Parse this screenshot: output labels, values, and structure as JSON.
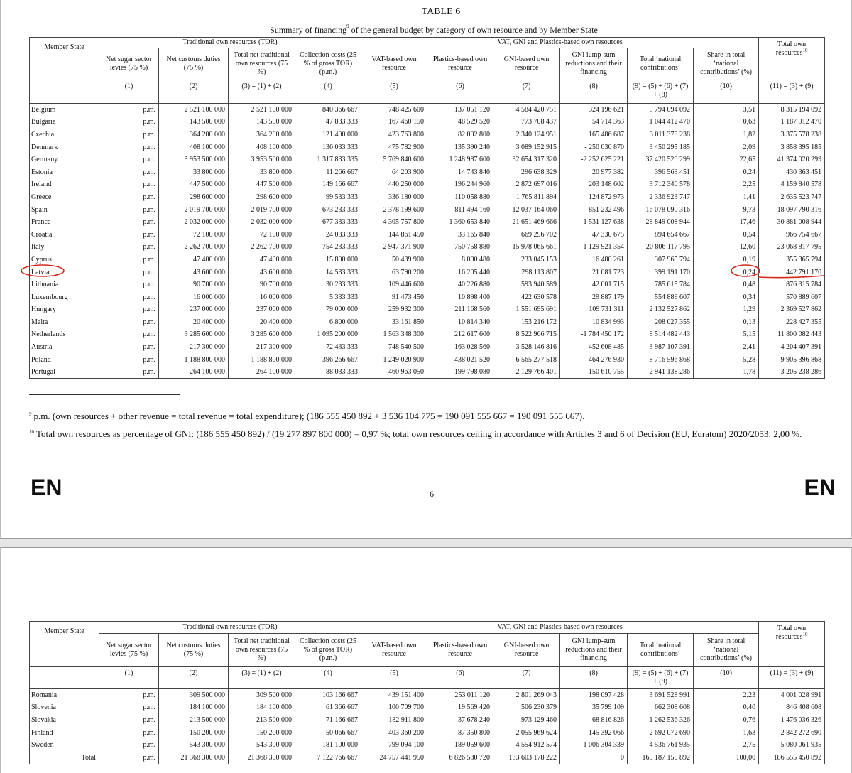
{
  "page_top": {
    "title": "TABLE 6",
    "subtitle": "Summary of financing",
    "subtitle_sup": "9",
    "subtitle_end": "of the general budget by category of own resource and by Member State"
  },
  "table": {
    "groups": [
      "Traditional own resources (TOR)",
      "VAT, GNI and Plastics-based own resources"
    ],
    "columns": [
      "Member State",
      "Net sugar sector levies (75 %)",
      "Net customs duties (75 %)",
      "Total net traditional own resources (75 %)",
      "Collection costs (25 % of gross TOR) (p.m.)",
      "VAT-based own resource",
      "Plastics-based own resource",
      "GNI-based own resource",
      "GNI lump-sum reductions and their financing",
      "Total ‘national contributions’",
      "Share in total ‘national contributions’ (%)",
      "Total own resources"
    ],
    "columns_sup": "10",
    "numbers": [
      "(1)",
      "(2)",
      "(3) = (1) + (2)",
      "(4)",
      "(5)",
      "(6)",
      "(7)",
      "(8)",
      "(9) = (5) + (6) + (7) + (8)",
      "(10)",
      "(11) = (3) + (9)"
    ],
    "rows": [
      [
        "Belgium",
        "p.m.",
        "2 521 100 000",
        "2 521 100 000",
        "840 366 667",
        "748 425 600",
        "137 051 120",
        "4 584 420 751",
        "324 196 621",
        "5 794 094 092",
        "3,51",
        "8 315 194 092"
      ],
      [
        "Bulgaria",
        "p.m.",
        "143 500 000",
        "143 500 000",
        "47 833 333",
        "167 460 150",
        "48 529 520",
        "773 708 437",
        "54 714 363",
        "1 044 412 470",
        "0,63",
        "1 187 912 470"
      ],
      [
        "Czechia",
        "p.m.",
        "364 200 000",
        "364 200 000",
        "121 400 000",
        "423 763 800",
        "82 002 800",
        "2 340 124 951",
        "165 486 687",
        "3 011 378 238",
        "1,82",
        "3 375 578 238"
      ],
      [
        "Denmark",
        "p.m.",
        "408 100 000",
        "408 100 000",
        "136 033 333",
        "475 782 900",
        "135 390 240",
        "3 089 152 915",
        "- 250 030 870",
        "3 450 295 185",
        "2,09",
        "3 858 395 185"
      ],
      [
        "Germany",
        "p.m.",
        "3 953 500 000",
        "3 953 500 000",
        "1 317 833 335",
        "5 769 840 600",
        "1 248 987 600",
        "32 654 317 320",
        "-2 252 625 221",
        "37 420 520 299",
        "22,65",
        "41 374 020 299"
      ],
      [
        "Estonia",
        "p.m.",
        "33 800 000",
        "33 800 000",
        "11 266 667",
        "64 203 900",
        "14 743 840",
        "296 638 329",
        "20 977 382",
        "396 563 451",
        "0,24",
        "430 363 451"
      ],
      [
        "Ireland",
        "p.m.",
        "447 500 000",
        "447 500 000",
        "149 166 667",
        "440 250 000",
        "196 244 960",
        "2 872 697 016",
        "203 148 602",
        "3 712 340 578",
        "2,25",
        "4 159 840 578"
      ],
      [
        "Greece",
        "p.m.",
        "298 600 000",
        "298 600 000",
        "99 533 333",
        "336 180 000",
        "110 058 880",
        "1 765 811 894",
        "124 872 973",
        "2 336 923 747",
        "1,41",
        "2 635 523 747"
      ],
      [
        "Spain",
        "p.m.",
        "2 019 700 000",
        "2 019 700 000",
        "673 233 333",
        "2 378 199 600",
        "811 494 160",
        "12 037 164 060",
        "851 232 496",
        "16 078 090 316",
        "9,73",
        "18 097 790 316"
      ],
      [
        "France",
        "p.m.",
        "2 032 000 000",
        "2 032 000 000",
        "677 333 333",
        "4 305 757 800",
        "1 360 653 840",
        "21 651 469 666",
        "1 531 127 638",
        "28 849 008 944",
        "17,46",
        "30 881 008 944"
      ],
      [
        "Croatia",
        "p.m.",
        "72 100 000",
        "72 100 000",
        "24 033 333",
        "144 861 450",
        "33 165 840",
        "669 296 702",
        "47 330 675",
        "894 654 667",
        "0,54",
        "966 754 667"
      ],
      [
        "Italy",
        "p.m.",
        "2 262 700 000",
        "2 262 700 000",
        "754 233 333",
        "2 947 371 900",
        "750 758 880",
        "15 978 065 661",
        "1 129 921 354",
        "20 806 117 795",
        "12,60",
        "23 068 817 795"
      ],
      [
        "Cyprus",
        "p.m.",
        "47 400 000",
        "47 400 000",
        "15 800 000",
        "50 439 900",
        "8 000 480",
        "233 045 153",
        "16 480 261",
        "307 965 794",
        "0,19",
        "355 365 794"
      ],
      [
        "Latvia",
        "p.m.",
        "43 600 000",
        "43 600 000",
        "14 533 333",
        "63 790 200",
        "16 205 440",
        "298 113 807",
        "21 081 723",
        "399 191 170",
        "0,24",
        "442 791 170"
      ],
      [
        "Lithuania",
        "p.m.",
        "90 700 000",
        "90 700 000",
        "30 233 333",
        "109 446 600",
        "40 226 880",
        "593 940 589",
        "42 001 715",
        "785 615 784",
        "0,48",
        "876 315 784"
      ],
      [
        "Luxembourg",
        "p.m.",
        "16 000 000",
        "16 000 000",
        "5 333 333",
        "91 473 450",
        "10 898 400",
        "422 630 578",
        "29 887 179",
        "554 889 607",
        "0,34",
        "570 889 607"
      ],
      [
        "Hungary",
        "p.m.",
        "237 000 000",
        "237 000 000",
        "79 000 000",
        "259 932 300",
        "211 168 560",
        "1 551 695 691",
        "109 731 311",
        "2 132 527 862",
        "1,29",
        "2 369 527 862"
      ],
      [
        "Malta",
        "p.m.",
        "20 400 000",
        "20 400 000",
        "6 800 000",
        "33 161 850",
        "10 814 340",
        "153 216 172",
        "10 834 993",
        "208 027 355",
        "0,13",
        "228 427 355"
      ],
      [
        "Netherlands",
        "p.m.",
        "3 285 600 000",
        "3 285 600 000",
        "1 095 200 000",
        "1 563 348 300",
        "212 617 600",
        "8 522 966 715",
        "-1 784 450 172",
        "8 514 482 443",
        "5,15",
        "11 800 082 443"
      ],
      [
        "Austria",
        "p.m.",
        "217 300 000",
        "217 300 000",
        "72 433 333",
        "748 540 500",
        "163 028 560",
        "3 528 146 816",
        "- 452 608 485",
        "3 987 107 391",
        "2,41",
        "4 204 407 391"
      ],
      [
        "Poland",
        "p.m.",
        "1 188 800 000",
        "1 188 800 000",
        "396 266 667",
        "1 249 020 900",
        "438 021 520",
        "6 565 277 518",
        "464 276 930",
        "8 716 596 868",
        "5,28",
        "9 905 396 868"
      ],
      [
        "Portugal",
        "p.m.",
        "264 100 000",
        "264 100 000",
        "88 033 333",
        "460 963 050",
        "199 798 080",
        "2 129 766 401",
        "150 610 755",
        "2 941 138 286",
        "1,78",
        "3 205 238 286"
      ]
    ],
    "rows_page2": [
      [
        "Romania",
        "p.m.",
        "309 500 000",
        "309 500 000",
        "103 166 667",
        "439 151 400",
        "253 011 120",
        "2 801 269 043",
        "198 097 428",
        "3 691 528 991",
        "2,23",
        "4 001 028 991"
      ],
      [
        "Slovenia",
        "p.m.",
        "184 100 000",
        "184 100 000",
        "61 366 667",
        "100 709 700",
        "19 569 420",
        "506 230 379",
        "35 799 109",
        "662 308 608",
        "0,40",
        "846 408 608"
      ],
      [
        "Slovakia",
        "p.m.",
        "213 500 000",
        "213 500 000",
        "71 166 667",
        "182 911 800",
        "37 678 240",
        "973 129 460",
        "68 816 826",
        "1 262 536 326",
        "0,76",
        "1 476 036 326"
      ],
      [
        "Finland",
        "p.m.",
        "150 200 000",
        "150 200 000",
        "50 066 667",
        "403 360 200",
        "87 350 800",
        "2 055 969 624",
        "145 392 066",
        "2 692 072 690",
        "1,63",
        "2 842 272 690"
      ],
      [
        "Sweden",
        "p.m.",
        "543 300 000",
        "543 300 000",
        "181 100 000",
        "799 094 100",
        "189 059 600",
        "4 554 912 574",
        "-1 006 304 339",
        "4 536 761 935",
        "2,75",
        "5 080 061 935"
      ],
      [
        "Total",
        "p.m.",
        "21 368 300 000",
        "21 368 300 000",
        "7 122 766 667",
        "24 757 441 950",
        "6 826 530 720",
        "133 603 178 222",
        "0",
        "165 187 150 892",
        "100,00",
        "186 555 450 892"
      ]
    ]
  },
  "footnotes": [
    {
      "mark": "9",
      "text": "p.m. (own resources + other revenue = total revenue = total expenditure); (186 555 450 892 + 3 536 104 775 = 190 091 555 667 = 190 091 555 667)."
    },
    {
      "mark": "10",
      "text": "Total own resources as percentage of GNI: (186 555 450 892) / (19 277 897 800 000) = 0,97 %; total own resources ceiling in accordance with Articles 3 and 6 of Decision (EU, Euratom) 2020/2053: 2,00 %."
    }
  ],
  "footer": {
    "lang_left": "EN",
    "page_number": "6",
    "lang_right": "EN"
  }
}
